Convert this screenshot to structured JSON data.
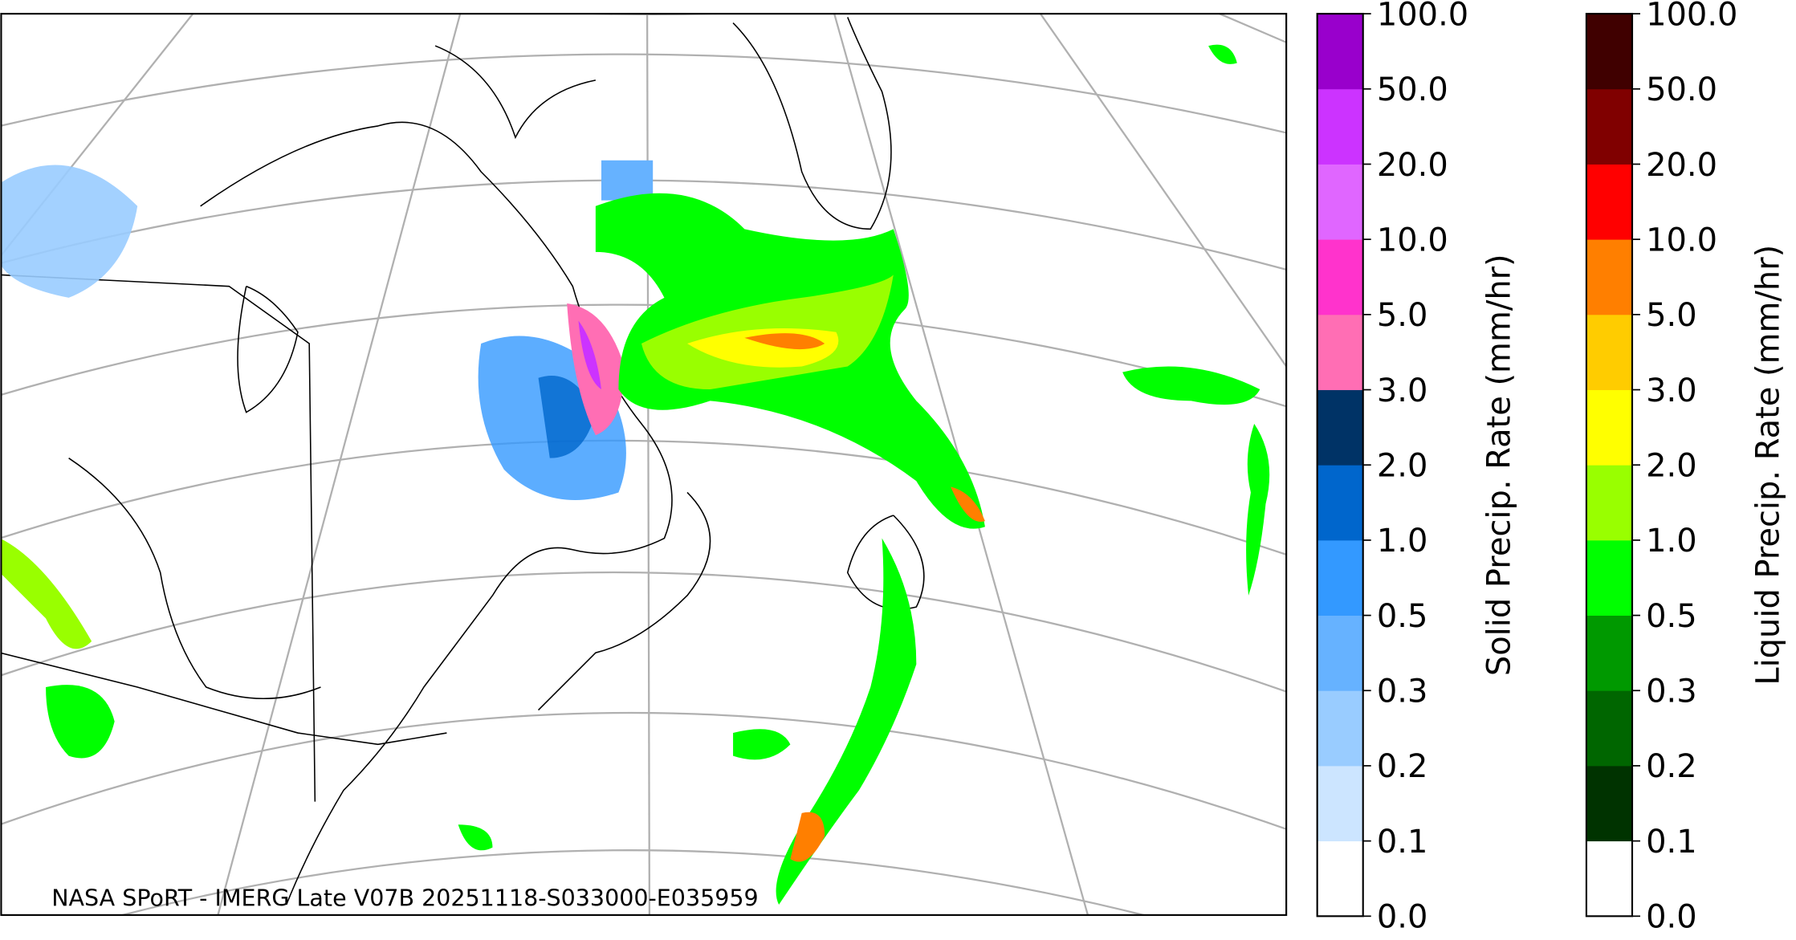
{
  "map": {
    "caption": "NASA SPoRT - IMERG Late V07B 20251118-S033000-E035959"
  },
  "colorbars": [
    {
      "label": "Solid Precip. Rate (mm/hr)",
      "ticks": [
        "0.0",
        "0.1",
        "0.2",
        "0.3",
        "0.5",
        "1.0",
        "2.0",
        "3.0",
        "5.0",
        "10.0",
        "20.0",
        "50.0",
        "100.0"
      ],
      "colors": [
        "#ffffff",
        "#cce5ff",
        "#99ccff",
        "#66b2ff",
        "#3399ff",
        "#0066cc",
        "#003366",
        "#ff6eb4",
        "#ff33cc",
        "#e066ff",
        "#cc33ff",
        "#9900cc"
      ]
    },
    {
      "label": "Liquid Precip. Rate (mm/hr)",
      "ticks": [
        "0.0",
        "0.1",
        "0.2",
        "0.3",
        "0.5",
        "1.0",
        "2.0",
        "3.0",
        "5.0",
        "10.0",
        "20.0",
        "50.0",
        "100.0"
      ],
      "colors": [
        "#ffffff",
        "#003300",
        "#006600",
        "#009900",
        "#00ff00",
        "#99ff00",
        "#ffff00",
        "#ffcc00",
        "#ff7f00",
        "#ff0000",
        "#800000",
        "#400000"
      ]
    }
  ]
}
